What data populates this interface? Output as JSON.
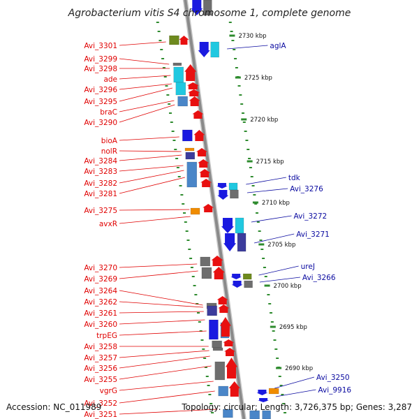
{
  "title": "Agrobacterium vitis S4 chromosome 1, complete genome",
  "footer": {
    "accession": "Accession: NC_011989",
    "summary": "Topology: circular; Length: 3,726,375 bp; Genes: 3,287"
  },
  "scale_labels": [
    "2730 kbp",
    "2725 kbp",
    "2720 kbp",
    "2715 kbp",
    "2710 kbp",
    "2705 kbp",
    "2700 kbp",
    "2695 kbp",
    "2690 kbp"
  ],
  "left_labels": [
    "Avi_3301",
    "Avi_3299",
    "Avi_3298",
    "ade",
    "Avi_3296",
    "Avi_3295",
    "braC",
    "Avi_3290",
    "bioA",
    "nolR",
    "Avi_3284",
    "Avi_3283",
    "Avi_3282",
    "Avi_3281",
    "Avi_3275",
    "avxR",
    "Avi_3270",
    "Avi_3269",
    "Avi_3264",
    "Avi_3262",
    "Avi_3261",
    "Avi_3260",
    "trpEG",
    "Avi_3258",
    "Avi_3257",
    "Avi_3256",
    "Avi_3255",
    "vgrG",
    "Avi_3252",
    "Avi_3251"
  ],
  "right_labels": [
    "aglA",
    "tdk",
    "Avi_3276",
    "Avi_3272",
    "Avi_3271",
    "ureJ",
    "Avi_3266",
    "Avi_3250",
    "Avi_9916"
  ],
  "colors": {
    "backbone": "#8a8a8a",
    "left_label": "#e00000",
    "right_label": "#0a0aa0",
    "tick": "#2e8b2e",
    "gene_red": "#e81010",
    "gene_blue": "#1a1ae0",
    "gene_cyan": "#20c8e0",
    "gene_grey": "#6e6e6e",
    "gene_purple": "#3c3c9c",
    "gene_steel": "#4a86c8",
    "gene_orange": "#f08c00",
    "gene_olive": "#6e8a1e"
  }
}
